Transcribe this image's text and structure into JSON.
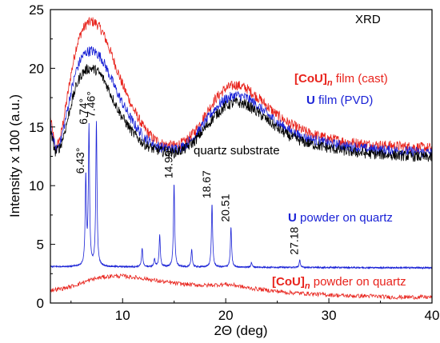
{
  "chart_data": {
    "type": "line",
    "title": "",
    "xlabel": "2Θ (deg)",
    "ylabel": "Intensity x 100 (a.u.)",
    "xlim": [
      3,
      40
    ],
    "ylim": [
      0,
      25
    ],
    "x_ticks": [
      "10",
      "20",
      "30",
      "40"
    ],
    "y_ticks": [
      "0",
      "5",
      "10",
      "15",
      "20",
      "25"
    ],
    "corner_label": "XRD",
    "colors": {
      "red": "#e8231c",
      "blue": "#1a22d6",
      "black": "#000000"
    },
    "series": [
      {
        "color": "#e8231c",
        "x": [
          3.0,
          3.5,
          4.0,
          4.5,
          5.0,
          5.5,
          6.0,
          6.5,
          7.0,
          7.5,
          8.0,
          8.5,
          9.0,
          9.5,
          10.0,
          11.0,
          12.0,
          13.0,
          14.0,
          15.0,
          16.0,
          17.0,
          18.0,
          19.0,
          20.0,
          21.0,
          22.0,
          23.0,
          24.0,
          25.0,
          26.0,
          27.0,
          28.0,
          30.0,
          32.0,
          34.0,
          36.0,
          38.0,
          40.0
        ],
        "y": [
          15.8,
          13.0,
          14.2,
          16.8,
          19.5,
          21.8,
          23.1,
          23.8,
          24.0,
          23.8,
          23.2,
          22.2,
          21.0,
          19.8,
          18.6,
          16.6,
          15.0,
          14.0,
          13.5,
          13.4,
          13.7,
          14.6,
          16.0,
          17.4,
          18.3,
          18.6,
          18.3,
          17.6,
          16.8,
          16.0,
          15.4,
          14.9,
          14.5,
          14.0,
          13.7,
          13.5,
          13.4,
          13.3,
          13.2
        ]
      },
      {
        "color": "#1a22d6",
        "x": [
          3.0,
          3.5,
          4.0,
          4.5,
          5.0,
          5.5,
          6.0,
          6.5,
          7.0,
          7.5,
          8.0,
          8.5,
          9.0,
          9.5,
          10.0,
          11.0,
          12.0,
          13.0,
          14.0,
          15.0,
          16.0,
          17.0,
          18.0,
          19.0,
          20.0,
          21.0,
          22.0,
          23.0,
          24.0,
          25.0,
          26.0,
          27.0,
          28.0,
          30.0,
          32.0,
          34.0,
          36.0,
          38.0,
          40.0
        ],
        "y": [
          15.2,
          13.0,
          13.8,
          15.8,
          18.0,
          19.8,
          20.9,
          21.4,
          21.5,
          21.3,
          20.8,
          19.9,
          18.9,
          17.9,
          17.0,
          15.4,
          14.2,
          13.5,
          13.2,
          13.1,
          13.4,
          14.2,
          15.4,
          16.6,
          17.4,
          17.7,
          17.5,
          16.9,
          16.1,
          15.4,
          14.8,
          14.3,
          14.0,
          13.6,
          13.3,
          13.1,
          13.0,
          12.9,
          12.8
        ]
      },
      {
        "color": "#000000",
        "x": [
          3.0,
          3.5,
          4.0,
          4.5,
          5.0,
          5.5,
          6.0,
          6.5,
          7.0,
          7.5,
          8.0,
          8.5,
          9.0,
          9.5,
          10.0,
          11.0,
          12.0,
          13.0,
          14.0,
          15.0,
          16.0,
          17.0,
          18.0,
          19.0,
          20.0,
          21.0,
          22.0,
          23.0,
          24.0,
          25.0,
          26.0,
          27.0,
          28.0,
          30.0,
          32.0,
          34.0,
          36.0,
          38.0,
          40.0
        ],
        "y": [
          14.6,
          12.8,
          13.4,
          15.0,
          16.9,
          18.5,
          19.5,
          19.9,
          20.0,
          19.8,
          19.3,
          18.5,
          17.5,
          16.6,
          15.8,
          14.5,
          13.6,
          13.1,
          12.9,
          12.8,
          13.1,
          13.8,
          14.9,
          16.0,
          16.8,
          17.1,
          16.9,
          16.3,
          15.6,
          14.9,
          14.3,
          13.9,
          13.6,
          13.2,
          12.9,
          12.7,
          12.6,
          12.5,
          12.4
        ]
      },
      {
        "color": "#1a22d6",
        "baseline": 3.1,
        "x": [
          3.0,
          40.0
        ],
        "y": [
          3.1,
          3.0
        ],
        "peaks": [
          {
            "x": 6.43,
            "y": 10.6,
            "label": "6.43°"
          },
          {
            "x": 6.74,
            "y": 14.8,
            "label": "6.74°"
          },
          {
            "x": 7.46,
            "y": 15.4,
            "label": "7.46°"
          },
          {
            "x": 11.9,
            "y": 4.7,
            "label": ""
          },
          {
            "x": 13.1,
            "y": 3.8,
            "label": ""
          },
          {
            "x": 13.6,
            "y": 5.8,
            "label": ""
          },
          {
            "x": 14.99,
            "y": 10.2,
            "label": "14.99°"
          },
          {
            "x": 16.7,
            "y": 4.6,
            "label": ""
          },
          {
            "x": 18.67,
            "y": 8.5,
            "label": "18.67"
          },
          {
            "x": 20.51,
            "y": 6.5,
            "label": "20.51"
          },
          {
            "x": 22.5,
            "y": 3.5,
            "label": ""
          },
          {
            "x": 27.18,
            "y": 3.7,
            "label": "27.18"
          }
        ]
      },
      {
        "color": "#e8231c",
        "x": [
          3.0,
          4.0,
          5.0,
          6.0,
          7.0,
          8.0,
          9.0,
          10.0,
          12.0,
          14.0,
          16.0,
          18.0,
          20.0,
          21.0,
          22.0,
          24.0,
          26.0,
          28.0,
          30.0,
          32.0,
          34.0,
          36.0,
          38.0,
          40.0
        ],
        "y": [
          1.1,
          1.2,
          1.4,
          1.7,
          2.0,
          2.2,
          2.3,
          2.3,
          2.1,
          1.8,
          1.6,
          1.5,
          1.6,
          1.5,
          1.3,
          1.1,
          0.9,
          0.8,
          0.7,
          0.6,
          0.6,
          0.5,
          0.5,
          0.5
        ]
      }
    ],
    "annotations": [
      {
        "prefix": "[CoU]",
        "subscript": "n",
        "suffix": " film (cast)",
        "color": "#e8231c",
        "bold_part": "[CoU]"
      },
      {
        "prefix": "U",
        "subscript": "",
        "suffix": " film (PVD)",
        "color": "#1a22d6",
        "bold_part": "U"
      },
      {
        "prefix": "",
        "subscript": "",
        "suffix": "quartz substrate",
        "color": "#000000",
        "bold_part": ""
      },
      {
        "prefix": "U",
        "subscript": "",
        "suffix": " powder on quartz",
        "color": "#1a22d6",
        "bold_part": "U"
      },
      {
        "prefix": "[CoU]",
        "subscript": "n",
        "suffix": " powder on quartz",
        "color": "#e8231c",
        "bold_part": "[CoU]"
      }
    ]
  }
}
